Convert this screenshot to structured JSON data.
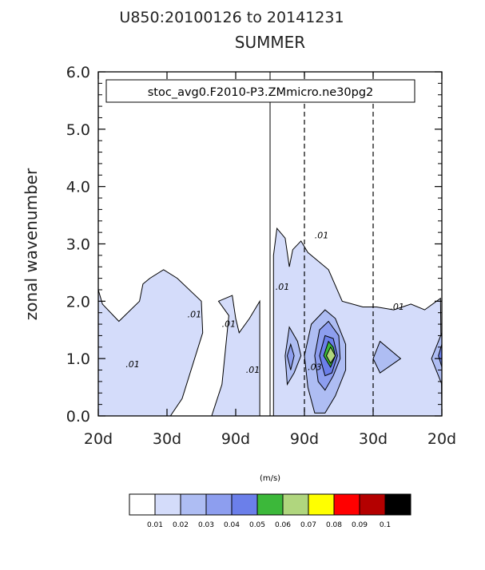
{
  "title": "U850:20100126 to 20141231",
  "subtitle": "SUMMER",
  "ylabel": "zonal wavenumber",
  "case_label": "stoc_avg0.F2010-P3.ZMmicro.ne30pg2",
  "colorbar": {
    "unit_label": "(m/s)",
    "levels": [
      "0.01",
      "0.02",
      "0.03",
      "0.04",
      "0.05",
      "0.06",
      "0.07",
      "0.08",
      "0.09",
      "0.1"
    ],
    "colors": [
      "#ffffff",
      "#d4dcfa",
      "#aebdf3",
      "#8d9eef",
      "#6b7fea",
      "#3cb83a",
      "#b0d67e",
      "#ffff00",
      "#ff0000",
      "#b40000",
      "#000000"
    ]
  },
  "chart_data": {
    "type": "heatmap",
    "title": "U850:20100126 to 20141231",
    "subtitle": "SUMMER",
    "xlabel": "",
    "ylabel": "zonal wavenumber",
    "x_tick_labels": [
      "20d",
      "30d",
      "90d",
      "90d",
      "30d",
      "20d"
    ],
    "y_tick_labels": [
      "0.0",
      "1.0",
      "2.0",
      "3.0",
      "4.0",
      "5.0",
      "6.0"
    ],
    "ylim": [
      0,
      6
    ],
    "x_index": [
      0,
      1,
      2,
      3,
      4,
      5
    ],
    "dashed_reference_lines_x": [
      3,
      4
    ],
    "solid_reference_line_x": 2.5,
    "contour_labels": [
      {
        "text": ".01",
        "x": 0.5,
        "y": 0.85
      },
      {
        "text": ".01",
        "x": 1.4,
        "y": 1.72
      },
      {
        "text": ".01",
        "x": 1.9,
        "y": 1.55
      },
      {
        "text": ".01",
        "x": 2.25,
        "y": 0.75
      },
      {
        "text": ".01",
        "x": 2.68,
        "y": 2.2
      },
      {
        "text": ".01",
        "x": 3.25,
        "y": 3.1
      },
      {
        "text": ".01",
        "x": 4.35,
        "y": 1.85
      },
      {
        "text": ".03",
        "x": 3.15,
        "y": 0.8
      }
    ],
    "regions": [
      {
        "level": 0.01,
        "points": [
          [
            0,
            2.2
          ],
          [
            0.06,
            1.95
          ],
          [
            0.3,
            1.65
          ],
          [
            0.6,
            2.0
          ],
          [
            0.65,
            2.3
          ],
          [
            0.75,
            2.4
          ],
          [
            0.95,
            2.55
          ],
          [
            1.15,
            2.4
          ],
          [
            1.5,
            2.0
          ],
          [
            1.52,
            1.45
          ],
          [
            1.22,
            0.3
          ],
          [
            1.05,
            0.0
          ],
          [
            0,
            0
          ],
          [
            0,
            0.6
          ]
        ]
      },
      {
        "level": 0.01,
        "points": [
          [
            1.65,
            0.0
          ],
          [
            1.8,
            0.55
          ],
          [
            1.9,
            1.75
          ],
          [
            1.75,
            2.0
          ],
          [
            1.95,
            2.1
          ],
          [
            2.0,
            1.7
          ],
          [
            2.05,
            1.45
          ],
          [
            2.2,
            1.7
          ],
          [
            2.35,
            2.0
          ],
          [
            2.35,
            0.0
          ]
        ]
      },
      {
        "level": 0.01,
        "points": [
          [
            2.55,
            0.0
          ],
          [
            2.55,
            2.8
          ],
          [
            2.6,
            3.27
          ],
          [
            2.72,
            3.1
          ],
          [
            2.78,
            2.6
          ],
          [
            2.83,
            2.9
          ],
          [
            2.95,
            3.05
          ],
          [
            3.05,
            2.85
          ],
          [
            3.35,
            2.55
          ],
          [
            3.55,
            2.0
          ],
          [
            3.85,
            1.9
          ],
          [
            4.05,
            1.9
          ],
          [
            4.3,
            1.85
          ],
          [
            4.55,
            1.95
          ],
          [
            4.75,
            1.85
          ],
          [
            4.98,
            2.05
          ],
          [
            5.0,
            0.0
          ]
        ]
      },
      {
        "level": 0.02,
        "points": [
          [
            2.72,
            1.05
          ],
          [
            2.78,
            1.55
          ],
          [
            2.9,
            1.3
          ],
          [
            2.95,
            1.05
          ],
          [
            2.85,
            0.75
          ],
          [
            2.75,
            0.55
          ]
        ]
      },
      {
        "level": 0.02,
        "points": [
          [
            3.05,
            0.5
          ],
          [
            3.0,
            1.05
          ],
          [
            3.1,
            1.6
          ],
          [
            3.3,
            1.85
          ],
          [
            3.45,
            1.7
          ],
          [
            3.6,
            1.25
          ],
          [
            3.6,
            0.8
          ],
          [
            3.45,
            0.35
          ],
          [
            3.3,
            0.05
          ],
          [
            3.15,
            0.05
          ]
        ]
      },
      {
        "level": 0.02,
        "points": [
          [
            4.0,
            1.0
          ],
          [
            4.1,
            1.3
          ],
          [
            4.4,
            1.0
          ],
          [
            4.1,
            0.75
          ]
        ]
      },
      {
        "level": 0.02,
        "points": [
          [
            4.85,
            1.0
          ],
          [
            5.0,
            1.45
          ],
          [
            5.0,
            0.55
          ]
        ]
      },
      {
        "level": 0.03,
        "points": [
          [
            3.15,
            1.05
          ],
          [
            3.22,
            1.5
          ],
          [
            3.35,
            1.65
          ],
          [
            3.5,
            1.4
          ],
          [
            3.52,
            1.0
          ],
          [
            3.42,
            0.7
          ],
          [
            3.3,
            0.45
          ],
          [
            3.2,
            0.6
          ]
        ]
      },
      {
        "level": 0.03,
        "points": [
          [
            2.75,
            1.05
          ],
          [
            2.8,
            1.25
          ],
          [
            2.85,
            1.05
          ],
          [
            2.8,
            0.8
          ]
        ]
      },
      {
        "level": 0.04,
        "points": [
          [
            3.22,
            1.05
          ],
          [
            3.3,
            1.4
          ],
          [
            3.42,
            1.35
          ],
          [
            3.48,
            1.05
          ],
          [
            3.4,
            0.75
          ],
          [
            3.3,
            0.7
          ]
        ]
      },
      {
        "level": 0.04,
        "points": [
          [
            4.95,
            1.05
          ],
          [
            5.0,
            1.25
          ],
          [
            5.0,
            0.85
          ]
        ]
      },
      {
        "level": 0.05,
        "points": [
          [
            3.28,
            1.05
          ],
          [
            3.35,
            1.3
          ],
          [
            3.42,
            1.2
          ],
          [
            3.45,
            1.05
          ],
          [
            3.38,
            0.85
          ]
        ]
      },
      {
        "level": 0.06,
        "points": [
          [
            3.32,
            1.05
          ],
          [
            3.38,
            1.2
          ],
          [
            3.45,
            1.05
          ],
          [
            3.38,
            0.92
          ]
        ]
      }
    ]
  }
}
